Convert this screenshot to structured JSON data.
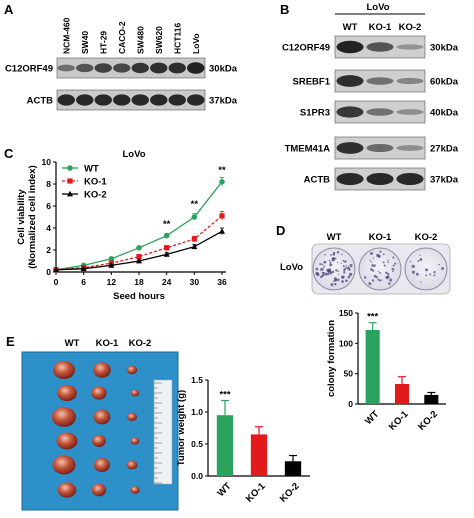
{
  "panel_a": {
    "letter": "A",
    "cell_lines": [
      "NCM-460",
      "SW40",
      "HT-29",
      "CACO-2",
      "SW480",
      "SW620",
      "HCT116",
      "LoVo"
    ],
    "blots": [
      {
        "name": "C12ORF49",
        "size": "30kDa",
        "intensity": [
          0.35,
          0.55,
          0.7,
          0.65,
          0.8,
          0.85,
          0.85,
          0.95
        ]
      },
      {
        "name": "ACTB",
        "size": "37kDa",
        "intensity": [
          0.9,
          0.9,
          0.9,
          0.9,
          0.9,
          0.9,
          0.9,
          0.9
        ]
      }
    ]
  },
  "panel_b": {
    "letter": "B",
    "cell_line": "LoVo",
    "lanes": [
      "WT",
      "KO-1",
      "KO-2"
    ],
    "blots": [
      {
        "name": "C12ORF49",
        "size": "30kDa",
        "intensity": [
          0.95,
          0.6,
          0.15
        ]
      },
      {
        "name": "SREBF1",
        "size": "60kDa",
        "intensity": [
          0.85,
          0.4,
          0.25
        ]
      },
      {
        "name": "S1PR3",
        "size": "40kDa",
        "intensity": [
          0.8,
          0.4,
          0.2
        ]
      },
      {
        "name": "TMEM41A",
        "size": "27kDa",
        "intensity": [
          0.85,
          0.45,
          0.2
        ]
      },
      {
        "name": "ACTB",
        "size": "37kDa",
        "intensity": [
          0.9,
          0.9,
          0.9
        ]
      }
    ]
  },
  "panel_c": {
    "letter": "C",
    "chart_data": {
      "type": "line",
      "title": "LoVo",
      "xlabel": "Seed hours",
      "ylabel": "Cell viability (Normalized cell index)",
      "ylabel_lines": [
        "Cell viability",
        "(Normalized cell index)"
      ],
      "x": [
        0,
        6,
        12,
        18,
        24,
        30,
        36
      ],
      "xticks": [
        "0",
        "6",
        "12",
        "18",
        "24",
        "30",
        "36"
      ],
      "ylim": [
        0,
        10
      ],
      "yticks": [
        "0",
        "2",
        "4",
        "6",
        "8",
        "10"
      ],
      "grid": false,
      "legend_position": "top-left",
      "series": [
        {
          "name": "WT",
          "color": "#2ca25f",
          "marker": "circle",
          "line": "solid",
          "values": [
            0.2,
            0.6,
            1.2,
            2.2,
            3.3,
            5.0,
            8.2
          ],
          "err": [
            0.05,
            0.1,
            0.1,
            0.15,
            0.2,
            0.3,
            0.4
          ]
        },
        {
          "name": "KO-1",
          "color": "#e31a1c",
          "marker": "square",
          "line": "dashed",
          "values": [
            0.2,
            0.4,
            0.8,
            1.4,
            2.2,
            3.0,
            5.1
          ],
          "err": [
            0.05,
            0.1,
            0.1,
            0.15,
            0.2,
            0.25,
            0.4
          ]
        },
        {
          "name": "KO-2",
          "color": "#000000",
          "marker": "triangle",
          "line": "solid",
          "values": [
            0.2,
            0.3,
            0.6,
            1.0,
            1.6,
            2.3,
            3.7
          ],
          "err": [
            0.05,
            0.05,
            0.1,
            0.1,
            0.15,
            0.2,
            0.3
          ]
        }
      ],
      "annotations": [
        {
          "x": 24,
          "y": 4.1,
          "text": "**"
        },
        {
          "x": 30,
          "y": 5.9,
          "text": "**"
        },
        {
          "x": 36,
          "y": 9.0,
          "text": "**"
        }
      ]
    }
  },
  "panel_d": {
    "letter": "D",
    "row_label": "LoVo",
    "plate_labels": [
      "WT",
      "KO-1",
      "KO-2"
    ],
    "colony_density": [
      0.9,
      0.5,
      0.2
    ],
    "chart_data": {
      "type": "bar",
      "categories": [
        "WT",
        "KO-1",
        "KO-2"
      ],
      "values": [
        122,
        33,
        15
      ],
      "errors": [
        12,
        12,
        4
      ],
      "colors": [
        "#2ca25f",
        "#e31a1c",
        "#000000"
      ],
      "ylabel": "colony formation",
      "ylim": [
        0,
        150
      ],
      "yticks": [
        "0",
        "50",
        "100",
        "150"
      ],
      "annotations": [
        {
          "category": "WT",
          "text": "***"
        }
      ]
    }
  },
  "panel_e": {
    "letter": "E",
    "column_labels": [
      "WT",
      "KO-1",
      "KO-2"
    ],
    "tumor_counts": [
      6,
      6,
      6
    ],
    "chart_data": {
      "type": "bar",
      "categories": [
        "WT",
        "KO-1",
        "KO-2"
      ],
      "values": [
        0.95,
        0.65,
        0.23
      ],
      "errors": [
        0.23,
        0.12,
        0.09
      ],
      "colors": [
        "#2ca25f",
        "#e31a1c",
        "#000000"
      ],
      "ylabel": "Tumor weight (g)",
      "ylim": [
        0,
        1.5
      ],
      "yticks": [
        "0.0",
        "0.5",
        "1.0",
        "1.5"
      ],
      "annotations": [
        {
          "category": "WT",
          "text": "***"
        }
      ]
    }
  }
}
